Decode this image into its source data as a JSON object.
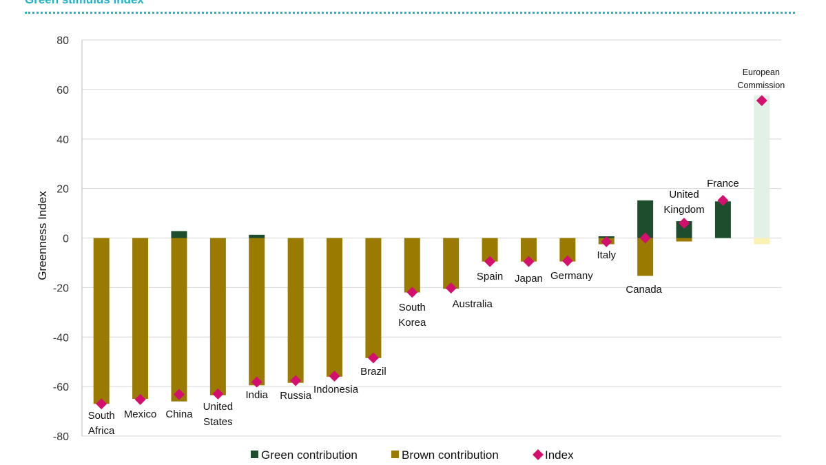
{
  "header": {
    "title": "Green stimulus index"
  },
  "chart_data": {
    "type": "bar",
    "title": "Green stimulus index",
    "ylabel": "Greenness Index",
    "xlabel": "",
    "ylim": [
      -80,
      80
    ],
    "yticks": [
      80,
      60,
      40,
      20,
      0,
      -20,
      -40,
      -60,
      -80
    ],
    "categories": [
      {
        "name": "South Africa",
        "lines": [
          "South",
          "Africa"
        ]
      },
      {
        "name": "Mexico",
        "lines": [
          "Mexico"
        ]
      },
      {
        "name": "China",
        "lines": [
          "China"
        ]
      },
      {
        "name": "United States",
        "lines": [
          "United",
          "States"
        ]
      },
      {
        "name": "India",
        "lines": [
          "India"
        ]
      },
      {
        "name": "Russia",
        "lines": [
          "Russia"
        ]
      },
      {
        "name": "Indonesia",
        "lines": [
          "Indonesia"
        ]
      },
      {
        "name": "Brazil",
        "lines": [
          "Brazil"
        ]
      },
      {
        "name": "South Korea",
        "lines": [
          "South",
          "Korea"
        ]
      },
      {
        "name": "Australia",
        "lines": [
          "Australia"
        ]
      },
      {
        "name": "Spain",
        "lines": [
          "Spain"
        ]
      },
      {
        "name": "Japan",
        "lines": [
          "Japan"
        ]
      },
      {
        "name": "Germany",
        "lines": [
          "Germany"
        ]
      },
      {
        "name": "Italy",
        "lines": [
          "Italy"
        ]
      },
      {
        "name": "Canada",
        "lines": [
          "Canada"
        ]
      },
      {
        "name": "United Kingdom",
        "lines": [
          "United",
          "Kingdom"
        ]
      },
      {
        "name": "France",
        "lines": [
          "France"
        ]
      },
      {
        "name": "European Commission",
        "lines": [
          "European",
          "Commission"
        ]
      }
    ],
    "series": [
      {
        "name": "Green contribution",
        "color": "#1d4d2c",
        "values": [
          0,
          0,
          2.8,
          0,
          1.3,
          0,
          0,
          0,
          0,
          0,
          0,
          0,
          0,
          0.7,
          15.2,
          6.8,
          14.8,
          57.5
        ]
      },
      {
        "name": "Brown contribution",
        "color": "#9a7a00",
        "values": [
          -67,
          -65,
          -66,
          -63.5,
          -59.5,
          -58.5,
          -56,
          -48.5,
          -22,
          -20.5,
          -9.5,
          -9.5,
          -9.5,
          -2.5,
          -15.3,
          -1.4,
          0,
          -2.5
        ]
      },
      {
        "name": "Index",
        "color": "#d3106e",
        "values": [
          -67,
          -65.2,
          -63.2,
          -63,
          -58.2,
          -57.6,
          -55.8,
          -48.4,
          -21.9,
          -20.2,
          -9.5,
          -9.5,
          -9.2,
          -1.5,
          0,
          6,
          15.2,
          55.5
        ]
      }
    ],
    "faded": [
      "European Commission"
    ],
    "faded_colors": {
      "green": "#e2f1e6",
      "brown": "#fdf0b5"
    },
    "legend": [
      "Green contribution",
      "Brown contribution",
      "Index"
    ]
  }
}
